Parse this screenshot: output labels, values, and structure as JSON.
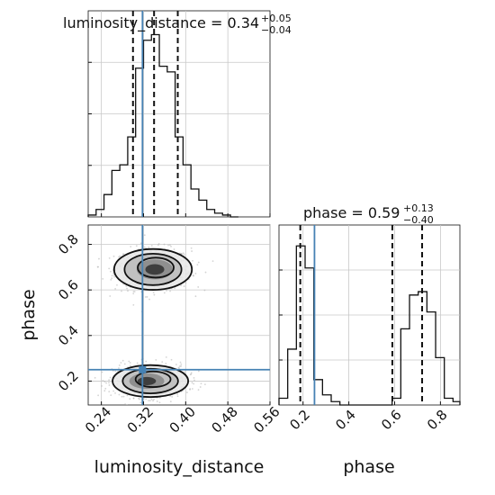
{
  "chart_data": [
    {
      "type": "histogram",
      "panel": "luminosity_distance-marginal",
      "title_main": "luminosity_distance = 0.34",
      "title_sup": "+0.05",
      "title_sub": "−0.04",
      "xlim": [
        0.215,
        0.56
      ],
      "ylim": [
        0,
        1
      ],
      "bins": [
        0.215,
        0.23,
        0.245,
        0.26,
        0.275,
        0.29,
        0.305,
        0.32,
        0.335,
        0.35,
        0.365,
        0.38,
        0.395,
        0.41,
        0.425,
        0.44,
        0.455,
        0.47,
        0.485,
        0.5
      ],
      "values": [
        0.01,
        0.04,
        0.12,
        0.25,
        0.28,
        0.43,
        0.8,
        0.95,
        0.98,
        0.81,
        0.78,
        0.43,
        0.28,
        0.15,
        0.09,
        0.04,
        0.02,
        0.01,
        0.0
      ],
      "quantiles": [
        0.3,
        0.34,
        0.385
      ],
      "truth": 0.318,
      "grid": true
    },
    {
      "type": "histogram",
      "panel": "phase-marginal",
      "title_main": "phase = 0.59",
      "title_sup": "+0.13",
      "title_sub": "−0.40",
      "xlim": [
        0.095,
        0.885
      ],
      "ylim": [
        0,
        1
      ],
      "bins": [
        0.095,
        0.133,
        0.171,
        0.209,
        0.247,
        0.285,
        0.323,
        0.361,
        0.399,
        0.437,
        0.475,
        0.513,
        0.551,
        0.589,
        0.627,
        0.665,
        0.703,
        0.741,
        0.779,
        0.817,
        0.855,
        0.885
      ],
      "values": [
        0.04,
        0.33,
        0.94,
        0.81,
        0.15,
        0.06,
        0.02,
        0.0,
        0.0,
        0.0,
        0.0,
        0.0,
        0.0,
        0.04,
        0.45,
        0.65,
        0.67,
        0.55,
        0.28,
        0.04,
        0.02
      ],
      "quantiles": [
        0.188,
        0.59,
        0.72
      ],
      "truth": 0.25,
      "grid": true,
      "xticks": [
        0.2,
        0.4,
        0.6,
        0.8
      ],
      "xlabel": "phase"
    },
    {
      "type": "scatter-contour",
      "panel": "phase-vs-luminosity_distance",
      "xlim": [
        0.215,
        0.56
      ],
      "ylim": [
        0.095,
        0.885
      ],
      "xticks": [
        0.24,
        0.32,
        0.4,
        0.48,
        0.56
      ],
      "yticks": [
        0.2,
        0.4,
        0.6,
        0.8
      ],
      "xlabel": "luminosity_distance",
      "ylabel": "phase",
      "truth": {
        "x": 0.318,
        "y": 0.25
      },
      "modes": [
        {
          "x": 0.338,
          "y": 0.69,
          "sx": 0.036,
          "sy": 0.046,
          "weight": 0.5
        },
        {
          "x": 0.333,
          "y": 0.2,
          "sx": 0.035,
          "sy": 0.036,
          "weight": 0.5
        }
      ],
      "grid": true
    }
  ],
  "colors": {
    "line": "#111111",
    "truth": "#4682b4",
    "grid": "#c8c8c8",
    "scatter": "#b0b0b0"
  }
}
